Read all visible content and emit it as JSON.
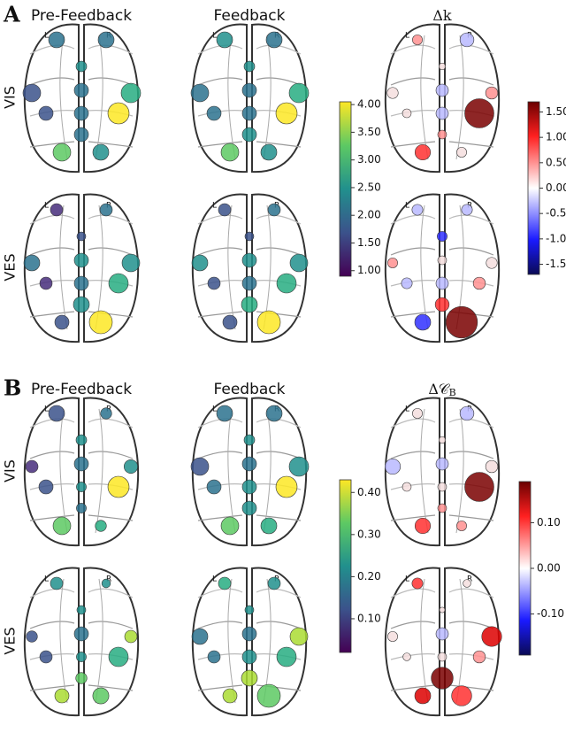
{
  "panels": [
    {
      "letter": "A",
      "columns": [
        "Pre-Feedback",
        "Feedback",
        {
          "text": "Δk",
          "subscript": ""
        }
      ],
      "rows": [
        "VIS",
        "VES"
      ],
      "colorbar": {
        "lim": [
          0.9,
          4.05
        ],
        "ticks": [
          {
            "value": 4,
            "label": "4.00"
          },
          {
            "value": 3.5,
            "label": "3.50"
          },
          {
            "value": 3,
            "label": "3.00"
          },
          {
            "value": 2.5,
            "label": "2.50"
          },
          {
            "value": 2,
            "label": "2.00"
          },
          {
            "value": 1.5,
            "label": "1.50"
          },
          {
            "value": 1,
            "label": "1.00"
          }
        ]
      },
      "diverging_colorbar": {
        "lim": [
          -1.7,
          1.7
        ],
        "ticks": [
          {
            "value": 1.5,
            "label": "1.50"
          },
          {
            "value": 1,
            "label": "1.00"
          },
          {
            "value": 0.5,
            "label": "0.50"
          },
          {
            "value": 0,
            "label": "0.00"
          },
          {
            "value": -0.5,
            "label": "-0.50"
          },
          {
            "value": -1,
            "label": "-1.00"
          },
          {
            "value": -1.5,
            "label": "-1.50"
          }
        ]
      }
    },
    {
      "letter": "B",
      "columns": [
        "Pre-Feedback",
        "Feedback",
        {
          "text": "Δ𝒞",
          "subscript": "B"
        }
      ],
      "rows": [
        "VIS",
        "VES"
      ],
      "colorbar": {
        "lim": [
          0.02,
          0.43
        ],
        "ticks": [
          {
            "value": 0.4,
            "label": "0.40"
          },
          {
            "value": 0.3,
            "label": "0.30"
          },
          {
            "value": 0.2,
            "label": "0.20"
          },
          {
            "value": 0.1,
            "label": "0.10"
          }
        ]
      },
      "diverging_colorbar": {
        "lim": [
          -0.19,
          0.19
        ],
        "ticks": [
          {
            "value": 0.1,
            "label": "0.10"
          },
          {
            "value": 0,
            "label": "0.00"
          },
          {
            "value": -0.1,
            "label": "-0.10"
          }
        ]
      }
    }
  ],
  "hemisphere_labels": [
    "L",
    "R"
  ]
}
